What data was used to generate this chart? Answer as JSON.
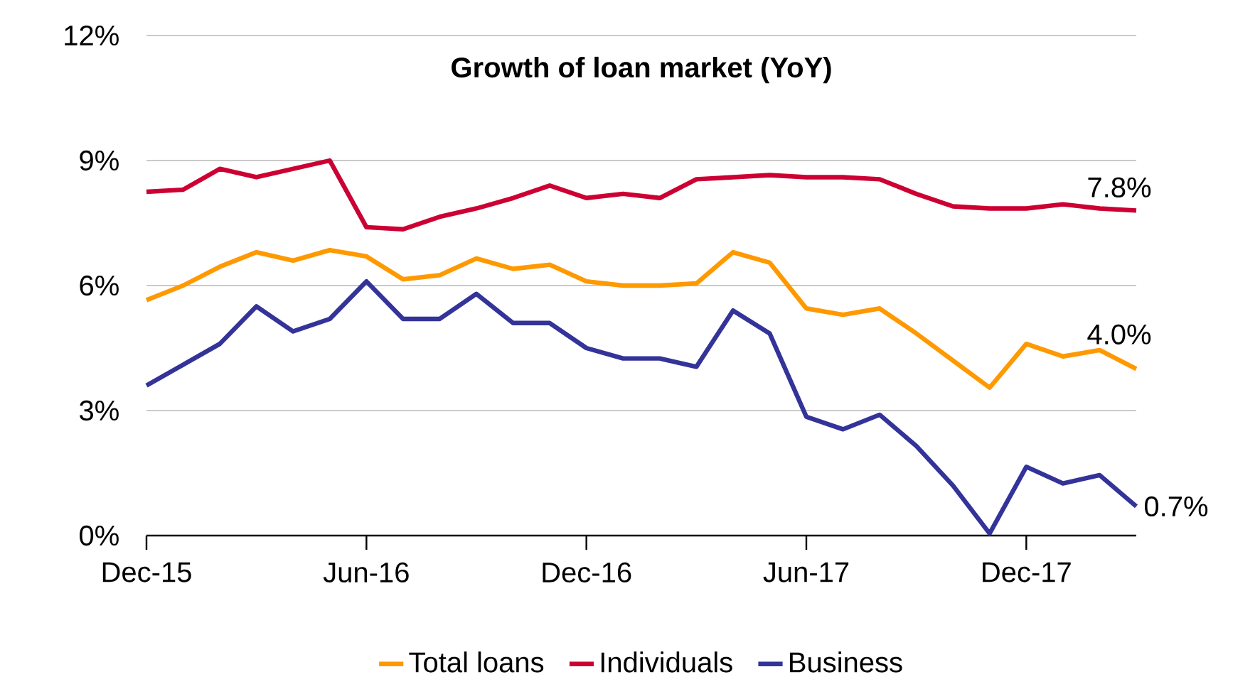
{
  "chart_data": {
    "type": "line",
    "title": "Growth of loan market (YoY)",
    "x": [
      "2015-12",
      "2016-01",
      "2016-02",
      "2016-03",
      "2016-04",
      "2016-05",
      "2016-06",
      "2016-07",
      "2016-08",
      "2016-09",
      "2016-10",
      "2016-11",
      "2016-12",
      "2017-01",
      "2017-02",
      "2017-03",
      "2017-04",
      "2017-05",
      "2017-06",
      "2017-07",
      "2017-08",
      "2017-09",
      "2017-10",
      "2017-11",
      "2017-12",
      "2018-01",
      "2018-02",
      "2018-03"
    ],
    "series": [
      {
        "name": "Total loans",
        "color": "#ff9900",
        "values": [
          5.65,
          6.0,
          6.45,
          6.8,
          6.6,
          6.85,
          6.7,
          6.15,
          6.25,
          6.65,
          6.4,
          6.5,
          6.1,
          6.0,
          6.0,
          6.05,
          6.8,
          6.55,
          5.45,
          5.3,
          5.45,
          4.85,
          4.2,
          3.55,
          4.6,
          4.3,
          4.45,
          4.0
        ]
      },
      {
        "name": "Individuals",
        "color": "#cc0033",
        "values": [
          8.25,
          8.3,
          8.8,
          8.6,
          8.8,
          9.0,
          7.4,
          7.35,
          7.65,
          7.85,
          8.1,
          8.4,
          8.1,
          8.2,
          8.1,
          8.55,
          8.6,
          8.65,
          8.6,
          8.6,
          8.55,
          8.2,
          7.9,
          7.85,
          7.85,
          7.95,
          7.85,
          7.8
        ]
      },
      {
        "name": "Business",
        "color": "#333399",
        "values": [
          3.6,
          4.1,
          4.6,
          5.5,
          4.9,
          5.2,
          6.1,
          5.2,
          5.2,
          5.8,
          5.1,
          5.1,
          4.5,
          4.25,
          4.25,
          4.05,
          5.4,
          4.85,
          2.85,
          2.55,
          2.9,
          2.15,
          1.2,
          0.05,
          1.65,
          1.25,
          1.45,
          0.7
        ]
      }
    ],
    "xlim": [
      "2015-12",
      "2018-03"
    ],
    "xticks": [
      {
        "value": "2015-12",
        "label": "Dec-15"
      },
      {
        "value": "2016-06",
        "label": "Jun-16"
      },
      {
        "value": "2016-12",
        "label": "Dec-16"
      },
      {
        "value": "2017-06",
        "label": "Jun-17"
      },
      {
        "value": "2017-12",
        "label": "Dec-17"
      }
    ],
    "ylim": [
      0,
      12
    ],
    "yticks": [
      {
        "value": 0,
        "label": "0%"
      },
      {
        "value": 3,
        "label": "3%"
      },
      {
        "value": 6,
        "label": "6%"
      },
      {
        "value": 9,
        "label": "9%"
      },
      {
        "value": 12,
        "label": "12%"
      }
    ],
    "grid": "y",
    "legend": "bottom",
    "marker": "none",
    "line_style": "solid",
    "annotations": [
      {
        "text": "7.8%",
        "x": "2018-03",
        "y": 7.8
      },
      {
        "text": "4.0%",
        "x": "2018-03",
        "y": 4.0
      },
      {
        "text": "0.7%",
        "x": "2018-03",
        "y": 0.7
      }
    ]
  }
}
